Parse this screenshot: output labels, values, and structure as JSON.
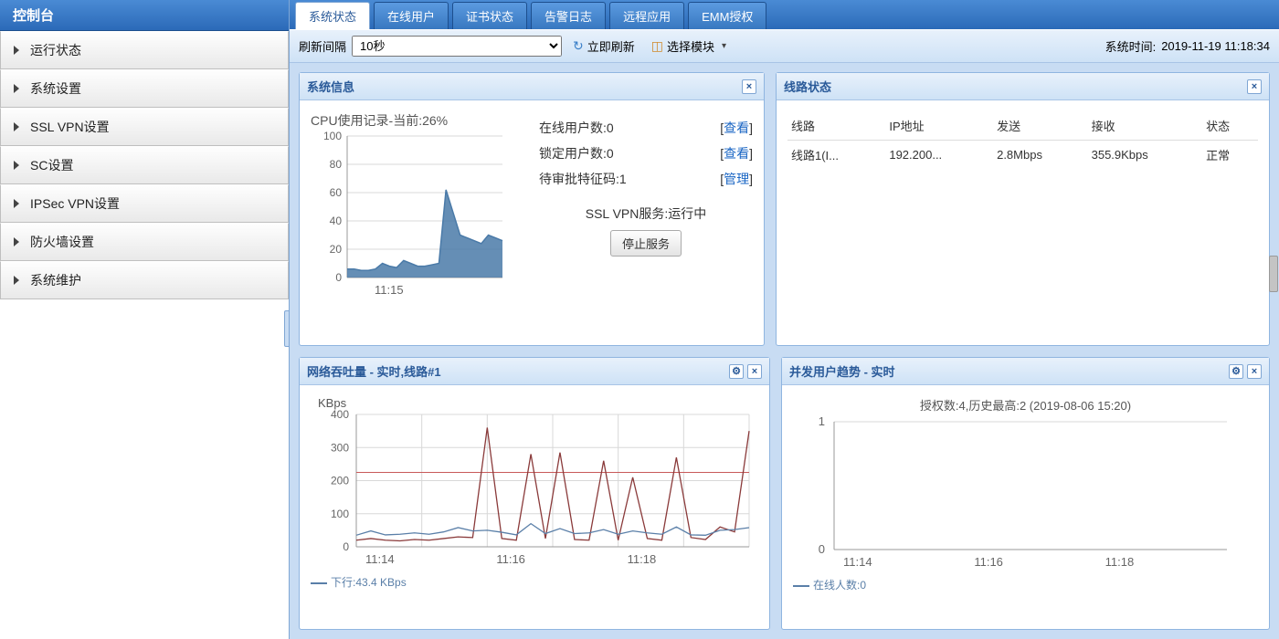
{
  "sidebar": {
    "title": "控制台",
    "items": [
      "运行状态",
      "系统设置",
      "SSL VPN设置",
      "SC设置",
      "IPSec VPN设置",
      "防火墙设置",
      "系统维护"
    ]
  },
  "tabs": [
    "系统状态",
    "在线用户",
    "证书状态",
    "告警日志",
    "远程应用",
    "EMM授权"
  ],
  "toolbar": {
    "refresh_label": "刷新间隔",
    "refresh_value": "10秒",
    "refresh_now": "立即刷新",
    "select_module": "选择模块",
    "system_time_label": "系统时间:",
    "system_time": "2019-11-19 11:18:34"
  },
  "panel_sysinfo": {
    "title": "系统信息",
    "cpu_title": "CPU使用记录-当前:26%",
    "chart": {
      "ylim": [
        0,
        100
      ],
      "yticks": [
        0,
        20,
        40,
        60,
        80,
        100
      ],
      "xtick_label": "11:15",
      "series_color": "#4a7aa8",
      "fill_color": "#4a7aa8",
      "grid_color": "#d8d8d8",
      "points": [
        6,
        6,
        5,
        5,
        6,
        10,
        8,
        7,
        12,
        10,
        8,
        8,
        9,
        10,
        62,
        46,
        30,
        28,
        26,
        24,
        30,
        28,
        26
      ]
    },
    "rows": [
      {
        "label": "在线用户数:",
        "value": "0",
        "action": "查看"
      },
      {
        "label": "锁定用户数:",
        "value": "0",
        "action": "查看"
      },
      {
        "label": "待审批特征码:",
        "value": "1",
        "action": "管理"
      }
    ],
    "service_label": "SSL VPN服务:",
    "service_status": "运行中",
    "stop_btn": "停止服务"
  },
  "panel_line": {
    "title": "线路状态",
    "columns": [
      "线路",
      "IP地址",
      "发送",
      "接收",
      "状态"
    ],
    "row": {
      "line": "线路1(I...",
      "ip": "192.200...",
      "send": "2.8Mbps",
      "recv": "355.9Kbps",
      "status": "正常"
    }
  },
  "panel_throughput": {
    "title": "网络吞吐量 - 实时,线路#1",
    "ylabel": "KBps",
    "ylim": [
      0,
      400
    ],
    "yticks": [
      0,
      100,
      200,
      300,
      400
    ],
    "xticks": [
      "11:14",
      "11:16",
      "11:18"
    ],
    "grid_color": "#d8d8d8",
    "series1_color": "#8a3a3a",
    "series2_color": "#5a7fa8",
    "threshold_color": "#c85a5a",
    "threshold_value": 225,
    "series1": [
      20,
      25,
      20,
      18,
      22,
      20,
      25,
      30,
      28,
      360,
      25,
      20,
      280,
      25,
      285,
      22,
      20,
      260,
      20,
      210,
      25,
      20,
      270,
      28,
      22,
      60,
      45,
      350
    ],
    "series2": [
      35,
      48,
      36,
      38,
      42,
      38,
      45,
      58,
      48,
      50,
      44,
      36,
      70,
      40,
      55,
      40,
      42,
      52,
      38,
      48,
      42,
      38,
      60,
      36,
      35,
      50,
      52,
      58
    ],
    "legend": "下行:43.4 KBps"
  },
  "panel_users": {
    "title": "并发用户趋势 - 实时",
    "subtitle": "授权数:4,历史最高:2 (2019-08-06 15:20)",
    "ylim": [
      0,
      1
    ],
    "yticks": [
      0,
      1
    ],
    "xticks": [
      "11:14",
      "11:16",
      "11:18"
    ],
    "grid_color": "#d8d8d8",
    "series_color": "#5a7fa8",
    "legend": "在线人数:0"
  }
}
